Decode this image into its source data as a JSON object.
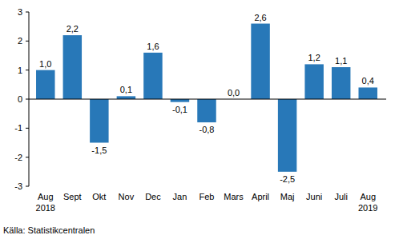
{
  "chart_data": {
    "type": "bar",
    "categories": [
      "Aug 2018",
      "Sept",
      "Okt",
      "Nov",
      "Dec",
      "Jan",
      "Feb",
      "Mars",
      "April",
      "Maj",
      "Juni",
      "Juli",
      "Aug 2019"
    ],
    "values": [
      1.0,
      2.2,
      -1.5,
      0.1,
      1.6,
      -0.1,
      -0.8,
      0.0,
      2.6,
      -2.5,
      1.2,
      1.1,
      0.4
    ],
    "value_labels": [
      "1,0",
      "2,2",
      "-1,5",
      "0,1",
      "1,6",
      "-0,1",
      "-0,8",
      "0,0",
      "2,6",
      "-2,5",
      "1,2",
      "1,1",
      "0,4"
    ],
    "color": "#2878b8",
    "ylim": [
      -3,
      3
    ],
    "yticks": [
      -3,
      -2,
      -1,
      0,
      1,
      2,
      3
    ],
    "grid": false,
    "data_labels": true,
    "source": "Källa: Statistikcentralen"
  }
}
